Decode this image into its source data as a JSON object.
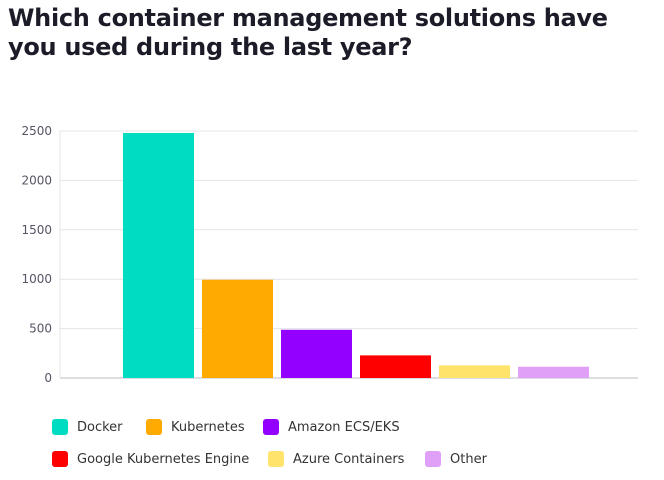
{
  "chart_data": {
    "type": "bar",
    "title": "Which container management solutions have you used during the last year?",
    "categories": [
      "Docker",
      "Kubernetes",
      "Amazon ECS/EKS",
      "Google Kubernetes Engine",
      "Azure Containers",
      "Other"
    ],
    "values": [
      2480,
      995,
      488,
      229,
      128,
      114
    ],
    "colors": [
      "#00dcc2",
      "#ffaa00",
      "#9400ff",
      "#ff0000",
      "#ffe36b",
      "#e0a0f8"
    ],
    "ylim": [
      0,
      2500
    ],
    "yticks": [
      0,
      500,
      1000,
      1500,
      2000,
      2500
    ],
    "grid": true,
    "legend_position": "bottom"
  }
}
